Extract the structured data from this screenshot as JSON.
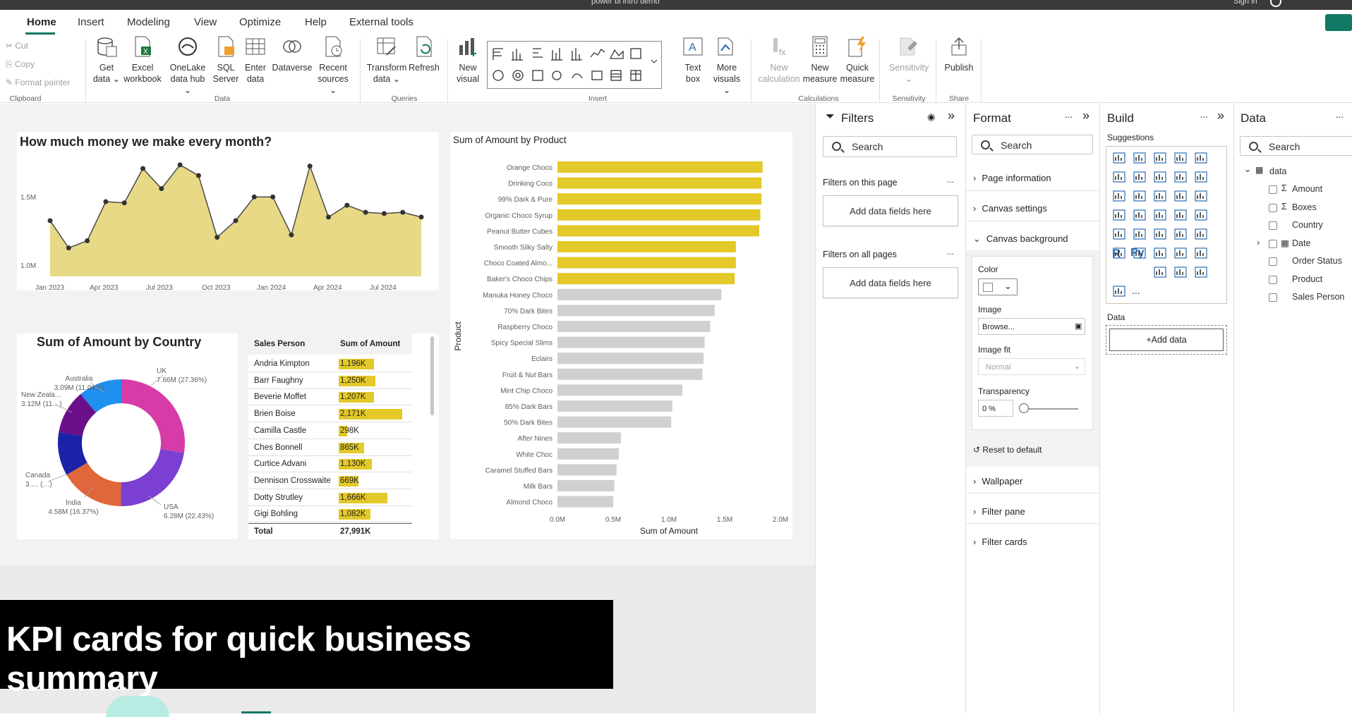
{
  "titlebar": {
    "file_name": "power bi intro demo",
    "sign_in": "Sign in"
  },
  "ribbon_tabs": [
    "Home",
    "Insert",
    "Modeling",
    "View",
    "Optimize",
    "Help",
    "External tools"
  ],
  "clipboard": {
    "cut": "Cut",
    "copy": "Copy",
    "format_painter": "Format painter",
    "group": "Clipboard"
  },
  "data_group": {
    "get_data": [
      "Get",
      "data ⌄"
    ],
    "excel": [
      "Excel",
      "workbook"
    ],
    "onelake": [
      "OneLake",
      "data hub ⌄"
    ],
    "sql": [
      "SQL",
      "Server"
    ],
    "enter": [
      "Enter",
      "data"
    ],
    "dataverse": [
      "Dataverse",
      ""
    ],
    "recent": [
      "Recent",
      "sources ⌄"
    ],
    "group": "Data"
  },
  "queries_group": {
    "transform": [
      "Transform",
      "data ⌄"
    ],
    "refresh": [
      "Refresh",
      ""
    ],
    "group": "Queries"
  },
  "insert_group": {
    "new_visual": [
      "New",
      "visual"
    ],
    "text_box": [
      "Text",
      "box"
    ],
    "more_visuals": [
      "More",
      "visuals ⌄"
    ],
    "group": "Insert"
  },
  "calc_group": {
    "new_calc": [
      "New",
      "calculation"
    ],
    "new_measure": [
      "New",
      "measure"
    ],
    "quick_measure": [
      "Quick",
      "measure"
    ],
    "group": "Calculations"
  },
  "sensitivity_group": {
    "sensitivity": [
      "Sensitivity",
      "⌄"
    ],
    "group": "Sensitivity"
  },
  "share_group": {
    "publish": [
      "Publish",
      ""
    ],
    "group": "Share"
  },
  "area_chart": {
    "title": "How much money we make every month?",
    "y_ticks": [
      "1.5M",
      "1.0M"
    ],
    "x_ticks": [
      "Jan 2023",
      "Apr 2023",
      "Jul 2023",
      "Oct 2023",
      "Jan 2024",
      "Apr 2024",
      "Jul 2024"
    ]
  },
  "chart_data": [
    {
      "type": "area",
      "title": "How much money we make every month?",
      "x": [
        "Jan 2023",
        "Feb 2023",
        "Mar 2023",
        "Apr 2023",
        "May 2023",
        "Jun 2023",
        "Jul 2023",
        "Aug 2023",
        "Sep 2023",
        "Oct 2023",
        "Nov 2023",
        "Dec 2023",
        "Jan 2024",
        "Feb 2024",
        "Mar 2024",
        "Apr 2024",
        "May 2024",
        "Jun 2024",
        "Jul 2024",
        "Aug 2024",
        "Sep 2024"
      ],
      "values": [
        1.22,
        0.99,
        1.05,
        1.38,
        1.37,
        1.66,
        1.49,
        1.69,
        1.6,
        1.08,
        1.22,
        1.42,
        1.42,
        1.1,
        1.68,
        1.25,
        1.35,
        1.29,
        1.28,
        1.29,
        1.25
      ],
      "ylim": [
        0.75,
        1.85
      ],
      "grid": false
    },
    {
      "type": "pie",
      "title": "Sum of Amount by Country",
      "donut": true,
      "categories": [
        "UK",
        "USA",
        "India",
        "Canada",
        "New Zealand",
        "Australia"
      ],
      "values": [
        7.66,
        6.28,
        4.58,
        3.09,
        3.12,
        3.09
      ],
      "labels": [
        "UK\n7.66M (27.36%)",
        "USA\n6.28M (22.43%)",
        "India\n4.58M (16.37%)",
        "Canada\n3.… (…)",
        "New Zeala…\n3.12M (11…)",
        "Australia\n3.09M (11.04%)"
      ],
      "colors": [
        "#d63ba8",
        "#7b3fd1",
        "#e0663c",
        "#1a22a8",
        "#6b0f8a",
        "#1e90f0"
      ]
    },
    {
      "type": "table",
      "title": "",
      "columns": [
        "Sales Person",
        "Sum of Amount"
      ],
      "rows": [
        [
          "Andria Kimpton",
          "1,196K"
        ],
        [
          "Barr Faughny",
          "1,250K"
        ],
        [
          "Beverie Moffet",
          "1,207K"
        ],
        [
          "Brien Boise",
          "2,171K"
        ],
        [
          "Camilla Castle",
          "298K"
        ],
        [
          "Ches Bonnell",
          "865K"
        ],
        [
          "Curtice Advani",
          "1,130K"
        ],
        [
          "Dennison Crosswaite",
          "669K"
        ],
        [
          "Dotty Strutley",
          "1,666K"
        ],
        [
          "Gigi Bohling",
          "1,082K"
        ]
      ],
      "values": [
        1196,
        1250,
        1207,
        2171,
        298,
        865,
        1130,
        669,
        1666,
        1082
      ],
      "total": [
        "Total",
        "27,991K"
      ]
    },
    {
      "type": "bar",
      "orientation": "horizontal",
      "title": "Sum of Amount by Product",
      "xlabel": "Sum of Amount",
      "ylabel": "Product",
      "xlim": [
        0,
        2.0
      ],
      "x_ticks": [
        "0.0M",
        "0.5M",
        "1.0M",
        "1.5M",
        "2.0M"
      ],
      "categories": [
        "Orange Choco",
        "Drinking Coco",
        "99% Dark & Pure",
        "Organic Choco Syrup",
        "Peanut Butter Cubes",
        "Smooth Silky Salty",
        "Choco Coated Almo...",
        "Baker's Choco Chips",
        "Manuka Honey Choco",
        "70% Dark Bites",
        "Raspberry Choco",
        "Spicy Special Slims",
        "Eclairs",
        "Fruit & Nut Bars",
        "Mint Chip Choco",
        "85% Dark Bars",
        "50% Dark Bites",
        "After Nines",
        "White Choc",
        "Caramel Stuffed Bars",
        "Milk Bars",
        "Almond Choco"
      ],
      "values": [
        1.84,
        1.83,
        1.83,
        1.82,
        1.81,
        1.6,
        1.6,
        1.59,
        1.47,
        1.41,
        1.37,
        1.32,
        1.31,
        1.3,
        1.12,
        1.03,
        1.02,
        0.57,
        0.55,
        0.53,
        0.51,
        0.5
      ],
      "highlighted_count": 8,
      "colors": {
        "highlight": "#e3c929",
        "other": "#d0d0d0"
      }
    }
  ],
  "kpi_banner": "KPI cards for quick business summary",
  "filters_pane": {
    "title": "Filters",
    "search": "Search",
    "on_this_page": "Filters on this page",
    "on_all_pages": "Filters on all pages",
    "add_fields": "Add data fields here",
    "more": "..."
  },
  "format_pane": {
    "title": "Format",
    "search": "Search",
    "page_information": "Page information",
    "canvas_settings": "Canvas settings",
    "canvas_background": "Canvas background",
    "color": "Color",
    "image": "Image",
    "browse": "Browse...",
    "image_fit": "Image fit",
    "image_fit_value": "Normal",
    "transparency": "Transparency",
    "transparency_value": "0 %",
    "reset": "Reset to default",
    "wallpaper": "Wallpaper",
    "filter_pane": "Filter pane",
    "filter_cards": "Filter cards",
    "more": "..."
  },
  "build_pane": {
    "title": "Build",
    "suggestions": "Suggestions",
    "data_label": "Data",
    "add_data": "+Add data",
    "more": "...",
    "r_label": "R",
    "py_label": "Py"
  },
  "data_pane": {
    "title": "Data",
    "search": "Search",
    "table": "data",
    "fields": [
      "Amount",
      "Boxes",
      "Country",
      "Date",
      "Order Status",
      "Product",
      "Sales Person"
    ],
    "more": "..."
  }
}
